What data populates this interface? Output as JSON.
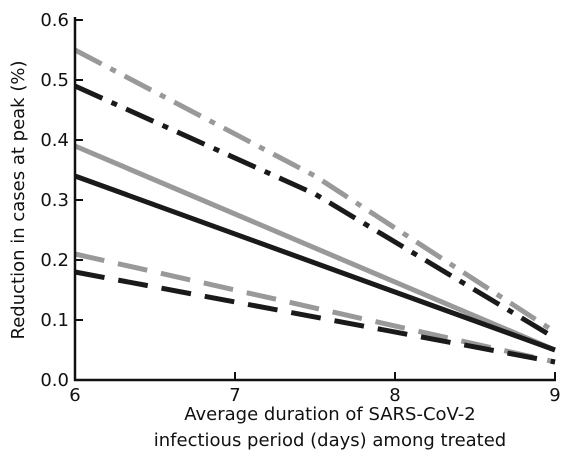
{
  "chart_data": {
    "type": "line",
    "xlabel_lines": [
      "Average duration of SARS-CoV-2",
      "infectious period (days) among treated"
    ],
    "ylabel": "Reduction in cases at peak (%)",
    "xlim": [
      6,
      9
    ],
    "ylim": [
      0,
      0.6
    ],
    "xticks": [
      6,
      7,
      8,
      9
    ],
    "xtick_labels": [
      "6",
      "7",
      "8",
      "9"
    ],
    "yticks": [
      0,
      0.1,
      0.2,
      0.3,
      0.4,
      0.5,
      0.6
    ],
    "ytick_labels": [
      "0.0",
      "0.1",
      "0.2",
      "0.3",
      "0.4",
      "0.5",
      "0.6"
    ],
    "grid": false,
    "series": [
      {
        "color": "#999999",
        "style": "dashdot",
        "x": [
          6,
          7.5,
          9
        ],
        "y": [
          0.55,
          0.34,
          0.08
        ]
      },
      {
        "color": "#1a1a1a",
        "style": "dashdot",
        "x": [
          6,
          7.5,
          9
        ],
        "y": [
          0.49,
          0.31,
          0.07
        ]
      },
      {
        "color": "#999999",
        "style": "solid",
        "x": [
          6,
          9
        ],
        "y": [
          0.39,
          0.05
        ]
      },
      {
        "color": "#1a1a1a",
        "style": "solid",
        "x": [
          6,
          9
        ],
        "y": [
          0.34,
          0.05
        ]
      },
      {
        "color": "#999999",
        "style": "dashed",
        "x": [
          6,
          9
        ],
        "y": [
          0.21,
          0.03
        ]
      },
      {
        "color": "#1a1a1a",
        "style": "dashed",
        "x": [
          6,
          9
        ],
        "y": [
          0.18,
          0.03
        ]
      }
    ]
  }
}
